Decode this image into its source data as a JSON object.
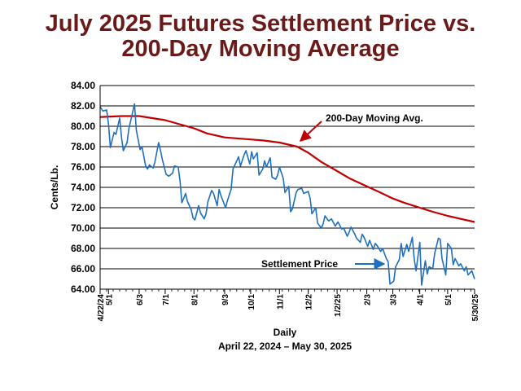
{
  "chart_data": {
    "type": "line",
    "title_line1": "July 2025 Futures Settlement Price vs.",
    "title_line2": "200-Day Moving Average",
    "ylabel": "Cents/Lb.",
    "xlabel": "Daily",
    "subtitle": "April 22, 2024 – May 30, 2025",
    "ylim": [
      64,
      84
    ],
    "y_ticks": [
      "64.00",
      "66.00",
      "68.00",
      "70.00",
      "72.00",
      "74.00",
      "76.00",
      "78.00",
      "80.00",
      "82.00",
      "84.00"
    ],
    "grid": true,
    "x_ticks": [
      {
        "label": "4/22/24",
        "date": "2024-04-22"
      },
      {
        "label": "5/1",
        "date": "2024-05-01"
      },
      {
        "label": "6/3",
        "date": "2024-06-03"
      },
      {
        "label": "7/1",
        "date": "2024-07-01"
      },
      {
        "label": "8/1",
        "date": "2024-08-01"
      },
      {
        "label": "9/3",
        "date": "2024-09-03"
      },
      {
        "label": "10/1",
        "date": "2024-10-01"
      },
      {
        "label": "11/1",
        "date": "2024-11-01"
      },
      {
        "label": "12/2",
        "date": "2024-12-02"
      },
      {
        "label": "1/2/25",
        "date": "2025-01-02"
      },
      {
        "label": "2/3",
        "date": "2025-02-03"
      },
      {
        "label": "3/3",
        "date": "2025-03-03"
      },
      {
        "label": "4/1",
        "date": "2025-04-01"
      },
      {
        "label": "5/1",
        "date": "2025-05-01"
      },
      {
        "label": "5/30/25",
        "date": "2025-05-30"
      }
    ],
    "annotations": [
      {
        "text": "200-Day Moving Avg.",
        "series": "moving_average"
      },
      {
        "text": "Settlement Price",
        "series": "settlement"
      }
    ],
    "series": [
      {
        "id": "settlement",
        "color": "#1f6fbf",
        "points": [
          [
            "2024-04-22",
            81.9
          ],
          [
            "2024-04-25",
            81.5
          ],
          [
            "2024-04-29",
            81.6
          ],
          [
            "2024-05-01",
            80.2
          ],
          [
            "2024-05-03",
            77.9
          ],
          [
            "2024-05-07",
            79.4
          ],
          [
            "2024-05-09",
            79.2
          ],
          [
            "2024-05-13",
            80.8
          ],
          [
            "2024-05-15",
            78.9
          ],
          [
            "2024-05-17",
            77.6
          ],
          [
            "2024-05-21",
            78.4
          ],
          [
            "2024-05-23",
            79.8
          ],
          [
            "2024-05-27",
            81.4
          ],
          [
            "2024-05-29",
            82.2
          ],
          [
            "2024-05-31",
            79.6
          ],
          [
            "2024-06-04",
            77.7
          ],
          [
            "2024-06-06",
            78.0
          ],
          [
            "2024-06-10",
            76.1
          ],
          [
            "2024-06-12",
            75.8
          ],
          [
            "2024-06-14",
            76.2
          ],
          [
            "2024-06-18",
            75.9
          ],
          [
            "2024-06-20",
            76.5
          ],
          [
            "2024-06-24",
            78.4
          ],
          [
            "2024-06-26",
            77.6
          ],
          [
            "2024-06-28",
            76.7
          ],
          [
            "2024-07-02",
            75.3
          ],
          [
            "2024-07-05",
            75.1
          ],
          [
            "2024-07-09",
            75.4
          ],
          [
            "2024-07-11",
            76.1
          ],
          [
            "2024-07-15",
            76.0
          ],
          [
            "2024-07-17",
            74.6
          ],
          [
            "2024-07-19",
            72.5
          ],
          [
            "2024-07-23",
            73.4
          ],
          [
            "2024-07-25",
            72.6
          ],
          [
            "2024-07-29",
            71.8
          ],
          [
            "2024-07-31",
            71.0
          ],
          [
            "2024-08-02",
            70.8
          ],
          [
            "2024-08-06",
            72.2
          ],
          [
            "2024-08-08",
            71.5
          ],
          [
            "2024-08-12",
            70.9
          ],
          [
            "2024-08-14",
            71.4
          ],
          [
            "2024-08-16",
            72.6
          ],
          [
            "2024-08-20",
            73.7
          ],
          [
            "2024-08-22",
            73.4
          ],
          [
            "2024-08-26",
            72.2
          ],
          [
            "2024-08-28",
            73.8
          ],
          [
            "2024-08-30",
            73.2
          ],
          [
            "2024-09-04",
            72.0
          ],
          [
            "2024-09-06",
            72.7
          ],
          [
            "2024-09-10",
            73.8
          ],
          [
            "2024-09-12",
            75.8
          ],
          [
            "2024-09-16",
            76.6
          ],
          [
            "2024-09-18",
            77.0
          ],
          [
            "2024-09-20",
            76.1
          ],
          [
            "2024-09-24",
            77.2
          ],
          [
            "2024-09-26",
            77.6
          ],
          [
            "2024-09-30",
            76.3
          ],
          [
            "2024-10-02",
            77.5
          ],
          [
            "2024-10-04",
            76.8
          ],
          [
            "2024-10-08",
            77.4
          ],
          [
            "2024-10-10",
            75.2
          ],
          [
            "2024-10-14",
            75.8
          ],
          [
            "2024-10-16",
            76.6
          ],
          [
            "2024-10-18",
            76.0
          ],
          [
            "2024-10-22",
            76.9
          ],
          [
            "2024-10-24",
            75.0
          ],
          [
            "2024-10-28",
            74.8
          ],
          [
            "2024-10-30",
            75.2
          ],
          [
            "2024-11-01",
            76.0
          ],
          [
            "2024-11-05",
            74.9
          ],
          [
            "2024-11-07",
            73.5
          ],
          [
            "2024-11-11",
            74.1
          ],
          [
            "2024-11-13",
            71.6
          ],
          [
            "2024-11-15",
            71.9
          ],
          [
            "2024-11-19",
            73.5
          ],
          [
            "2024-11-21",
            73.8
          ],
          [
            "2024-11-25",
            73.9
          ],
          [
            "2024-11-27",
            73.4
          ],
          [
            "2024-12-02",
            73.6
          ],
          [
            "2024-12-04",
            72.9
          ],
          [
            "2024-12-06",
            71.4
          ],
          [
            "2024-12-10",
            72.0
          ],
          [
            "2024-12-12",
            70.5
          ],
          [
            "2024-12-16",
            70.0
          ],
          [
            "2024-12-18",
            70.4
          ],
          [
            "2024-12-20",
            71.2
          ],
          [
            "2024-12-24",
            70.7
          ],
          [
            "2024-12-27",
            70.9
          ],
          [
            "2024-12-31",
            70.2
          ],
          [
            "2025-01-03",
            70.6
          ],
          [
            "2025-01-07",
            69.9
          ],
          [
            "2025-01-09",
            70.0
          ],
          [
            "2025-01-13",
            69.2
          ],
          [
            "2025-01-15",
            69.6
          ],
          [
            "2025-01-17",
            70.1
          ],
          [
            "2025-01-21",
            69.4
          ],
          [
            "2025-01-23",
            69.0
          ],
          [
            "2025-01-27",
            68.6
          ],
          [
            "2025-01-29",
            69.4
          ],
          [
            "2025-01-31",
            69.1
          ],
          [
            "2025-02-04",
            68.2
          ],
          [
            "2025-02-06",
            68.8
          ],
          [
            "2025-02-10",
            67.9
          ],
          [
            "2025-02-12",
            68.5
          ],
          [
            "2025-02-14",
            68.3
          ],
          [
            "2025-02-18",
            67.7
          ],
          [
            "2025-02-20",
            68.0
          ],
          [
            "2025-02-24",
            67.0
          ],
          [
            "2025-02-26",
            66.7
          ],
          [
            "2025-02-28",
            64.5
          ],
          [
            "2025-03-04",
            64.8
          ],
          [
            "2025-03-06",
            66.2
          ],
          [
            "2025-03-10",
            66.9
          ],
          [
            "2025-03-12",
            68.5
          ],
          [
            "2025-03-14",
            67.2
          ],
          [
            "2025-03-18",
            68.4
          ],
          [
            "2025-03-20",
            67.7
          ],
          [
            "2025-03-24",
            69.1
          ],
          [
            "2025-03-26",
            67.0
          ],
          [
            "2025-03-28",
            65.8
          ],
          [
            "2025-04-01",
            68.6
          ],
          [
            "2025-04-03",
            64.4
          ],
          [
            "2025-04-07",
            66.8
          ],
          [
            "2025-04-09",
            65.5
          ],
          [
            "2025-04-11",
            66.2
          ],
          [
            "2025-04-15",
            66.0
          ],
          [
            "2025-04-17",
            67.5
          ],
          [
            "2025-04-21",
            69.0
          ],
          [
            "2025-04-23",
            68.9
          ],
          [
            "2025-04-25",
            67.0
          ],
          [
            "2025-04-29",
            65.4
          ],
          [
            "2025-05-01",
            68.5
          ],
          [
            "2025-05-05",
            68.0
          ],
          [
            "2025-05-07",
            66.4
          ],
          [
            "2025-05-09",
            67.0
          ],
          [
            "2025-05-13",
            66.3
          ],
          [
            "2025-05-15",
            66.5
          ],
          [
            "2025-05-19",
            65.8
          ],
          [
            "2025-05-21",
            66.2
          ],
          [
            "2025-05-23",
            65.4
          ],
          [
            "2025-05-27",
            65.8
          ],
          [
            "2025-05-30",
            65.0
          ]
        ]
      },
      {
        "id": "moving_average",
        "color": "#c00000",
        "points": [
          [
            "2024-04-22",
            80.9
          ],
          [
            "2024-05-15",
            81.0
          ],
          [
            "2024-06-03",
            81.0
          ],
          [
            "2024-07-01",
            80.6
          ],
          [
            "2024-08-01",
            79.8
          ],
          [
            "2024-08-15",
            79.3
          ],
          [
            "2024-09-03",
            78.9
          ],
          [
            "2024-10-01",
            78.7
          ],
          [
            "2024-10-15",
            78.6
          ],
          [
            "2024-11-01",
            78.4
          ],
          [
            "2024-11-20",
            78.0
          ],
          [
            "2024-12-02",
            77.4
          ],
          [
            "2024-12-16",
            76.5
          ],
          [
            "2025-01-02",
            75.6
          ],
          [
            "2025-01-15",
            74.9
          ],
          [
            "2025-02-03",
            74.1
          ],
          [
            "2025-02-15",
            73.6
          ],
          [
            "2025-03-03",
            72.9
          ],
          [
            "2025-03-15",
            72.5
          ],
          [
            "2025-04-01",
            72.0
          ],
          [
            "2025-04-15",
            71.6
          ],
          [
            "2025-05-01",
            71.2
          ],
          [
            "2025-05-15",
            70.9
          ],
          [
            "2025-05-30",
            70.6
          ]
        ]
      }
    ]
  }
}
